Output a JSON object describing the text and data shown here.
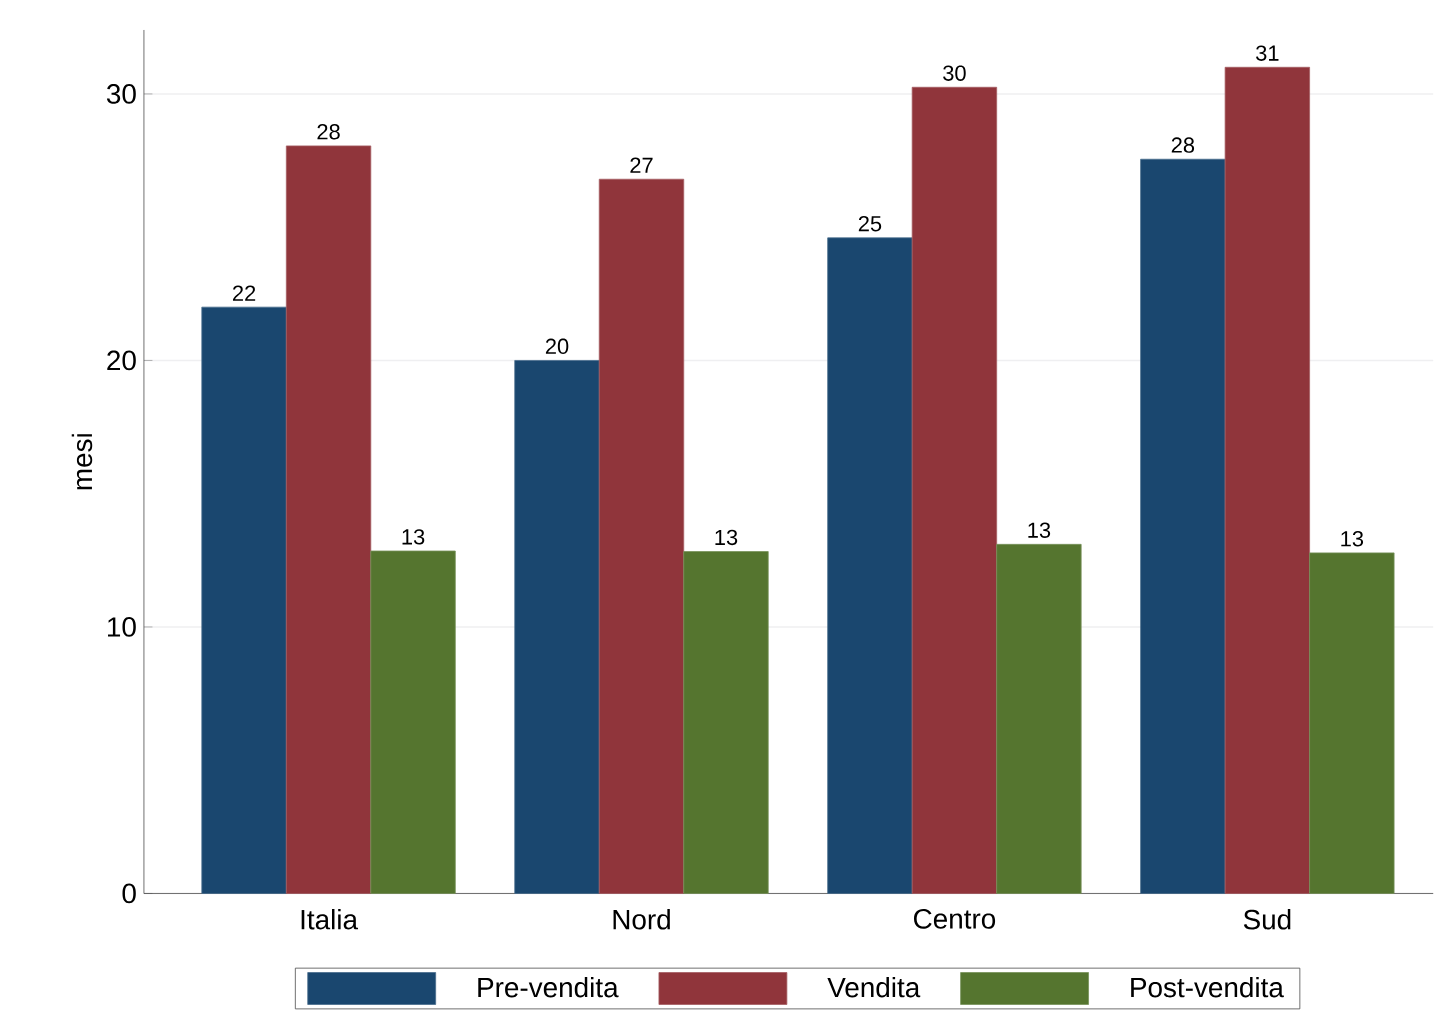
{
  "chart_data": {
    "type": "bar",
    "ylabel": "mesi",
    "categories": [
      "Italia",
      "Nord",
      "Centro",
      "Sud"
    ],
    "series": [
      {
        "name": "Pre-vendita",
        "color": "#1a476f",
        "values": [
          22.0,
          20.0,
          24.6,
          27.55
        ],
        "value_labels": [
          "22",
          "20",
          "25",
          "28"
        ]
      },
      {
        "name": "Vendita",
        "color": "#90353b",
        "values": [
          28.05,
          26.8,
          30.25,
          31.0
        ],
        "value_labels": [
          "28",
          "27",
          "30",
          "31"
        ]
      },
      {
        "name": "Post-vendita",
        "color": "#55752f",
        "values": [
          12.85,
          12.83,
          13.1,
          12.78
        ],
        "value_labels": [
          "13",
          "13",
          "13",
          "13"
        ]
      }
    ],
    "ylim": [
      0,
      32.4
    ],
    "yticks": [
      0,
      10,
      20,
      30
    ],
    "grid": "y",
    "legend": "bottom"
  }
}
